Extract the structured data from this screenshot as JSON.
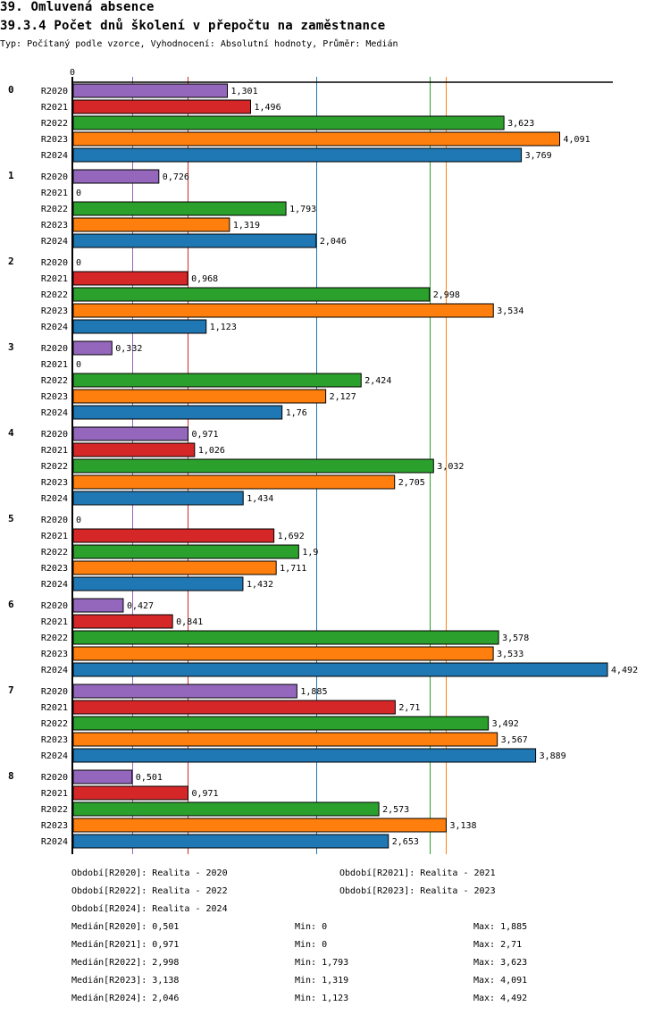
{
  "header": {
    "title": "39. Omluvená absence",
    "subtitle": "39.3.4 Počet dnů školení v přepočtu na zaměstnance",
    "description": "Typ: Počítaný podle vzorce, Vyhodnocení: Absolutní hodnoty, Průměr: Medián"
  },
  "chart_data": {
    "type": "bar",
    "orientation": "horizontal",
    "title": "39.3.4 Počet dnů školení v přepočtu na zaměstnance",
    "xlabel": "",
    "ylabel": "",
    "x_axis_origin_label": "0",
    "xlim": [
      0,
      4.492
    ],
    "grid": false,
    "categories": [
      "0",
      "1",
      "2",
      "3",
      "4",
      "5",
      "6",
      "7",
      "8"
    ],
    "series": [
      {
        "name": "R2020",
        "color": "#9467bd",
        "values": [
          1.301,
          0.726,
          0,
          0.332,
          0.971,
          0,
          0.427,
          1.885,
          0.501
        ],
        "labels": [
          "1,301",
          "0,726",
          "0",
          "0,332",
          "0,971",
          "0",
          "0,427",
          "1,885",
          "0,501"
        ]
      },
      {
        "name": "R2021",
        "color": "#d62728",
        "values": [
          1.496,
          0,
          0.968,
          0,
          1.026,
          1.692,
          0.841,
          2.71,
          0.971
        ],
        "labels": [
          "1,496",
          "0",
          "0,968",
          "0",
          "1,026",
          "1,692",
          "0,841",
          "2,71",
          "0,971"
        ]
      },
      {
        "name": "R2022",
        "color": "#2ca02c",
        "values": [
          3.623,
          1.793,
          2.998,
          2.424,
          3.032,
          1.9,
          3.578,
          3.492,
          2.573
        ],
        "labels": [
          "3,623",
          "1,793",
          "2,998",
          "2,424",
          "3,032",
          "1,9",
          "3,578",
          "3,492",
          "2,573"
        ]
      },
      {
        "name": "R2023",
        "color": "#ff7f0e",
        "values": [
          4.091,
          1.319,
          3.534,
          2.127,
          2.705,
          1.711,
          3.533,
          3.567,
          3.138
        ],
        "labels": [
          "4,091",
          "1,319",
          "3,534",
          "2,127",
          "2,705",
          "1,711",
          "3,533",
          "3,567",
          "3,138"
        ]
      },
      {
        "name": "R2024",
        "color": "#1f77b4",
        "values": [
          3.769,
          2.046,
          1.123,
          1.76,
          1.434,
          1.432,
          4.492,
          3.889,
          2.653
        ],
        "labels": [
          "3,769",
          "2,046",
          "1,123",
          "1,76",
          "1,434",
          "1,432",
          "4,492",
          "3,889",
          "2,653"
        ]
      }
    ],
    "median_lines": [
      {
        "series": "R2020",
        "value": 0.501,
        "color": "#9467bd"
      },
      {
        "series": "R2021",
        "value": 0.971,
        "color": "#d62728"
      },
      {
        "series": "R2022",
        "value": 2.998,
        "color": "#2ca02c"
      },
      {
        "series": "R2023",
        "value": 3.138,
        "color": "#ff7f0e"
      },
      {
        "series": "R2024",
        "value": 2.046,
        "color": "#1f77b4"
      }
    ]
  },
  "legend": {
    "periods": [
      "Období[R2020]: Realita - 2020",
      "Období[R2021]: Realita - 2021",
      "Období[R2022]: Realita - 2022",
      "Období[R2023]: Realita - 2023",
      "Období[R2024]: Realita - 2024"
    ],
    "stats": [
      {
        "median": "Medián[R2020]: 0,501",
        "min": "Min: 0",
        "max": "Max: 1,885"
      },
      {
        "median": "Medián[R2021]: 0,971",
        "min": "Min: 0",
        "max": "Max: 2,71"
      },
      {
        "median": "Medián[R2022]: 2,998",
        "min": "Min: 1,793",
        "max": "Max: 3,623"
      },
      {
        "median": "Medián[R2023]: 3,138",
        "min": "Min: 1,319",
        "max": "Max: 4,091"
      },
      {
        "median": "Medián[R2024]: 2,046",
        "min": "Min: 1,123",
        "max": "Max: 4,492"
      }
    ]
  }
}
